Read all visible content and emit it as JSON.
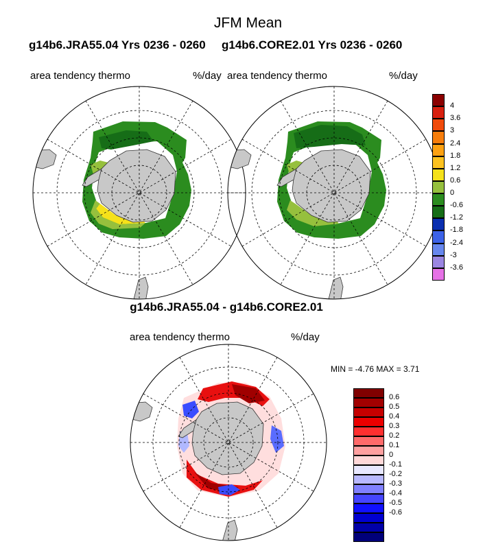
{
  "header": {
    "title": "JFM Mean",
    "left_run": "g14b6.JRA55.04  Yrs 0236 - 0260",
    "right_run": "g14b6.CORE2.01  Yrs 0236 - 0260"
  },
  "panels": {
    "left": {
      "variable": "area tendency thermo",
      "units": "%/day"
    },
    "right": {
      "variable": "area tendency thermo",
      "units": "%/day"
    },
    "diff": {
      "title": "g14b6.JRA55.04 - g14b6.CORE2.01",
      "variable": "area tendency thermo",
      "units": "%/day",
      "minmax": "MIN =  -4.76 MAX =   3.71"
    }
  },
  "colorbar_top": {
    "colors": [
      "#8b0000",
      "#d8200f",
      "#f04a0a",
      "#f77d0b",
      "#fda111",
      "#fdc21f",
      "#f5e11a",
      "#96c03d",
      "#2b8c1f",
      "#166d17",
      "#0a2fb0",
      "#3c62e8",
      "#6787ee",
      "#9b86e2",
      "#e671e6"
    ],
    "labels": [
      "4",
      "3.6",
      "3",
      "2.4",
      "1.8",
      "1.2",
      "0.6",
      "0",
      "-0.6",
      "-1.2",
      "-1.8",
      "-2.4",
      "-3",
      "-3.6"
    ]
  },
  "colorbar_diff": {
    "colors": [
      "#800000",
      "#a20000",
      "#c60000",
      "#ec0000",
      "#ff3030",
      "#ff6a6a",
      "#ffa0a0",
      "#ffd8d8",
      "#e8e8ff",
      "#b8b8ff",
      "#8080ff",
      "#4545ff",
      "#1010ff",
      "#0000d0",
      "#0000a8",
      "#00007a"
    ],
    "labels": [
      "0.6",
      "0.5",
      "0.4",
      "0.3",
      "0.2",
      "0.1",
      "0",
      "-0.1",
      "-0.2",
      "-0.3",
      "-0.4",
      "-0.5",
      "-0.6"
    ]
  }
}
